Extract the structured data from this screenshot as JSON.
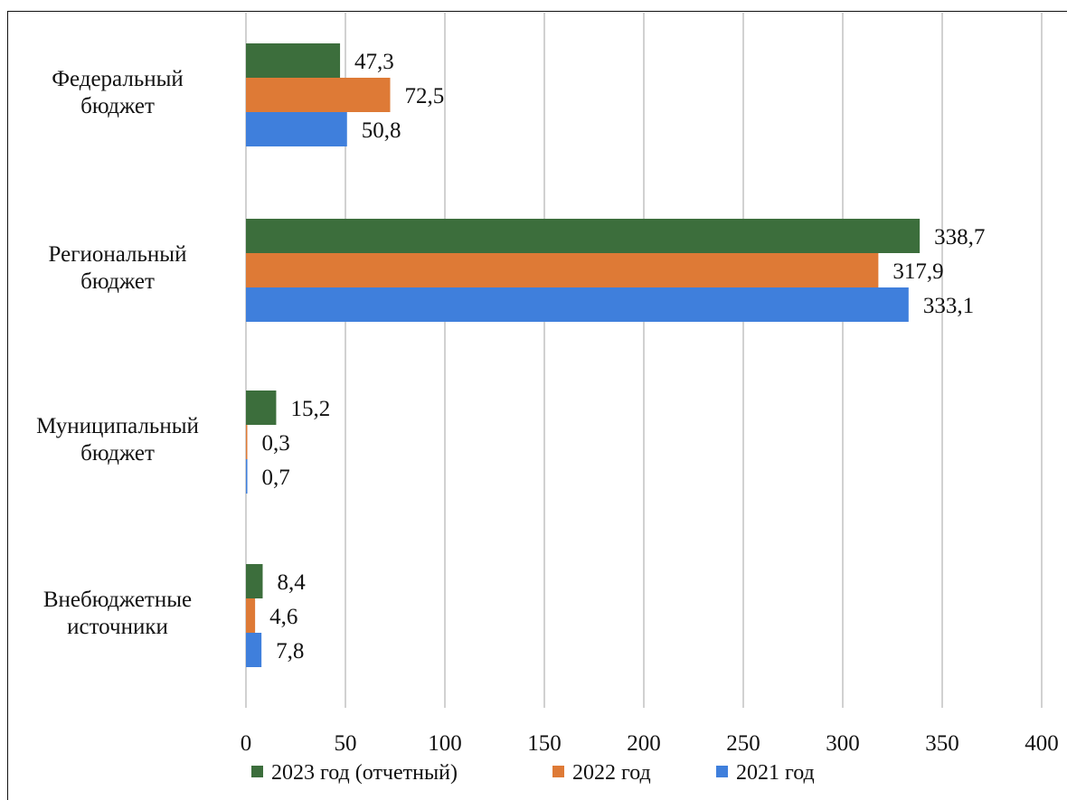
{
  "chart_data": {
    "type": "bar",
    "orientation": "horizontal",
    "categories": [
      [
        "Федеральный",
        "бюджет"
      ],
      [
        "Региональный",
        "бюджет"
      ],
      [
        "Муниципальный",
        "бюджет"
      ],
      [
        "Внебюджетные",
        "источники"
      ]
    ],
    "series": [
      {
        "name": "2023 год (отчетный)",
        "color": "#3c6e3c",
        "values": [
          47.3,
          338.7,
          15.2,
          8.4
        ],
        "labels": [
          "47,3",
          "338,7",
          "15,2",
          "8,4"
        ]
      },
      {
        "name": "2022 год",
        "color": "#de7a36",
        "values": [
          72.5,
          317.9,
          0.3,
          4.6
        ],
        "labels": [
          "72,5",
          "317,9",
          "0,3",
          "4,6"
        ]
      },
      {
        "name": "2021 год",
        "color": "#3f7fdc",
        "values": [
          50.8,
          333.1,
          0.7,
          7.8
        ],
        "labels": [
          "50,8",
          "333,1",
          "0,7",
          "7,8"
        ]
      }
    ],
    "xlim": [
      0,
      400
    ],
    "xticks": [
      0,
      50,
      100,
      150,
      200,
      250,
      300,
      350,
      400
    ],
    "grid": "vertical",
    "legend_position": "bottom"
  }
}
